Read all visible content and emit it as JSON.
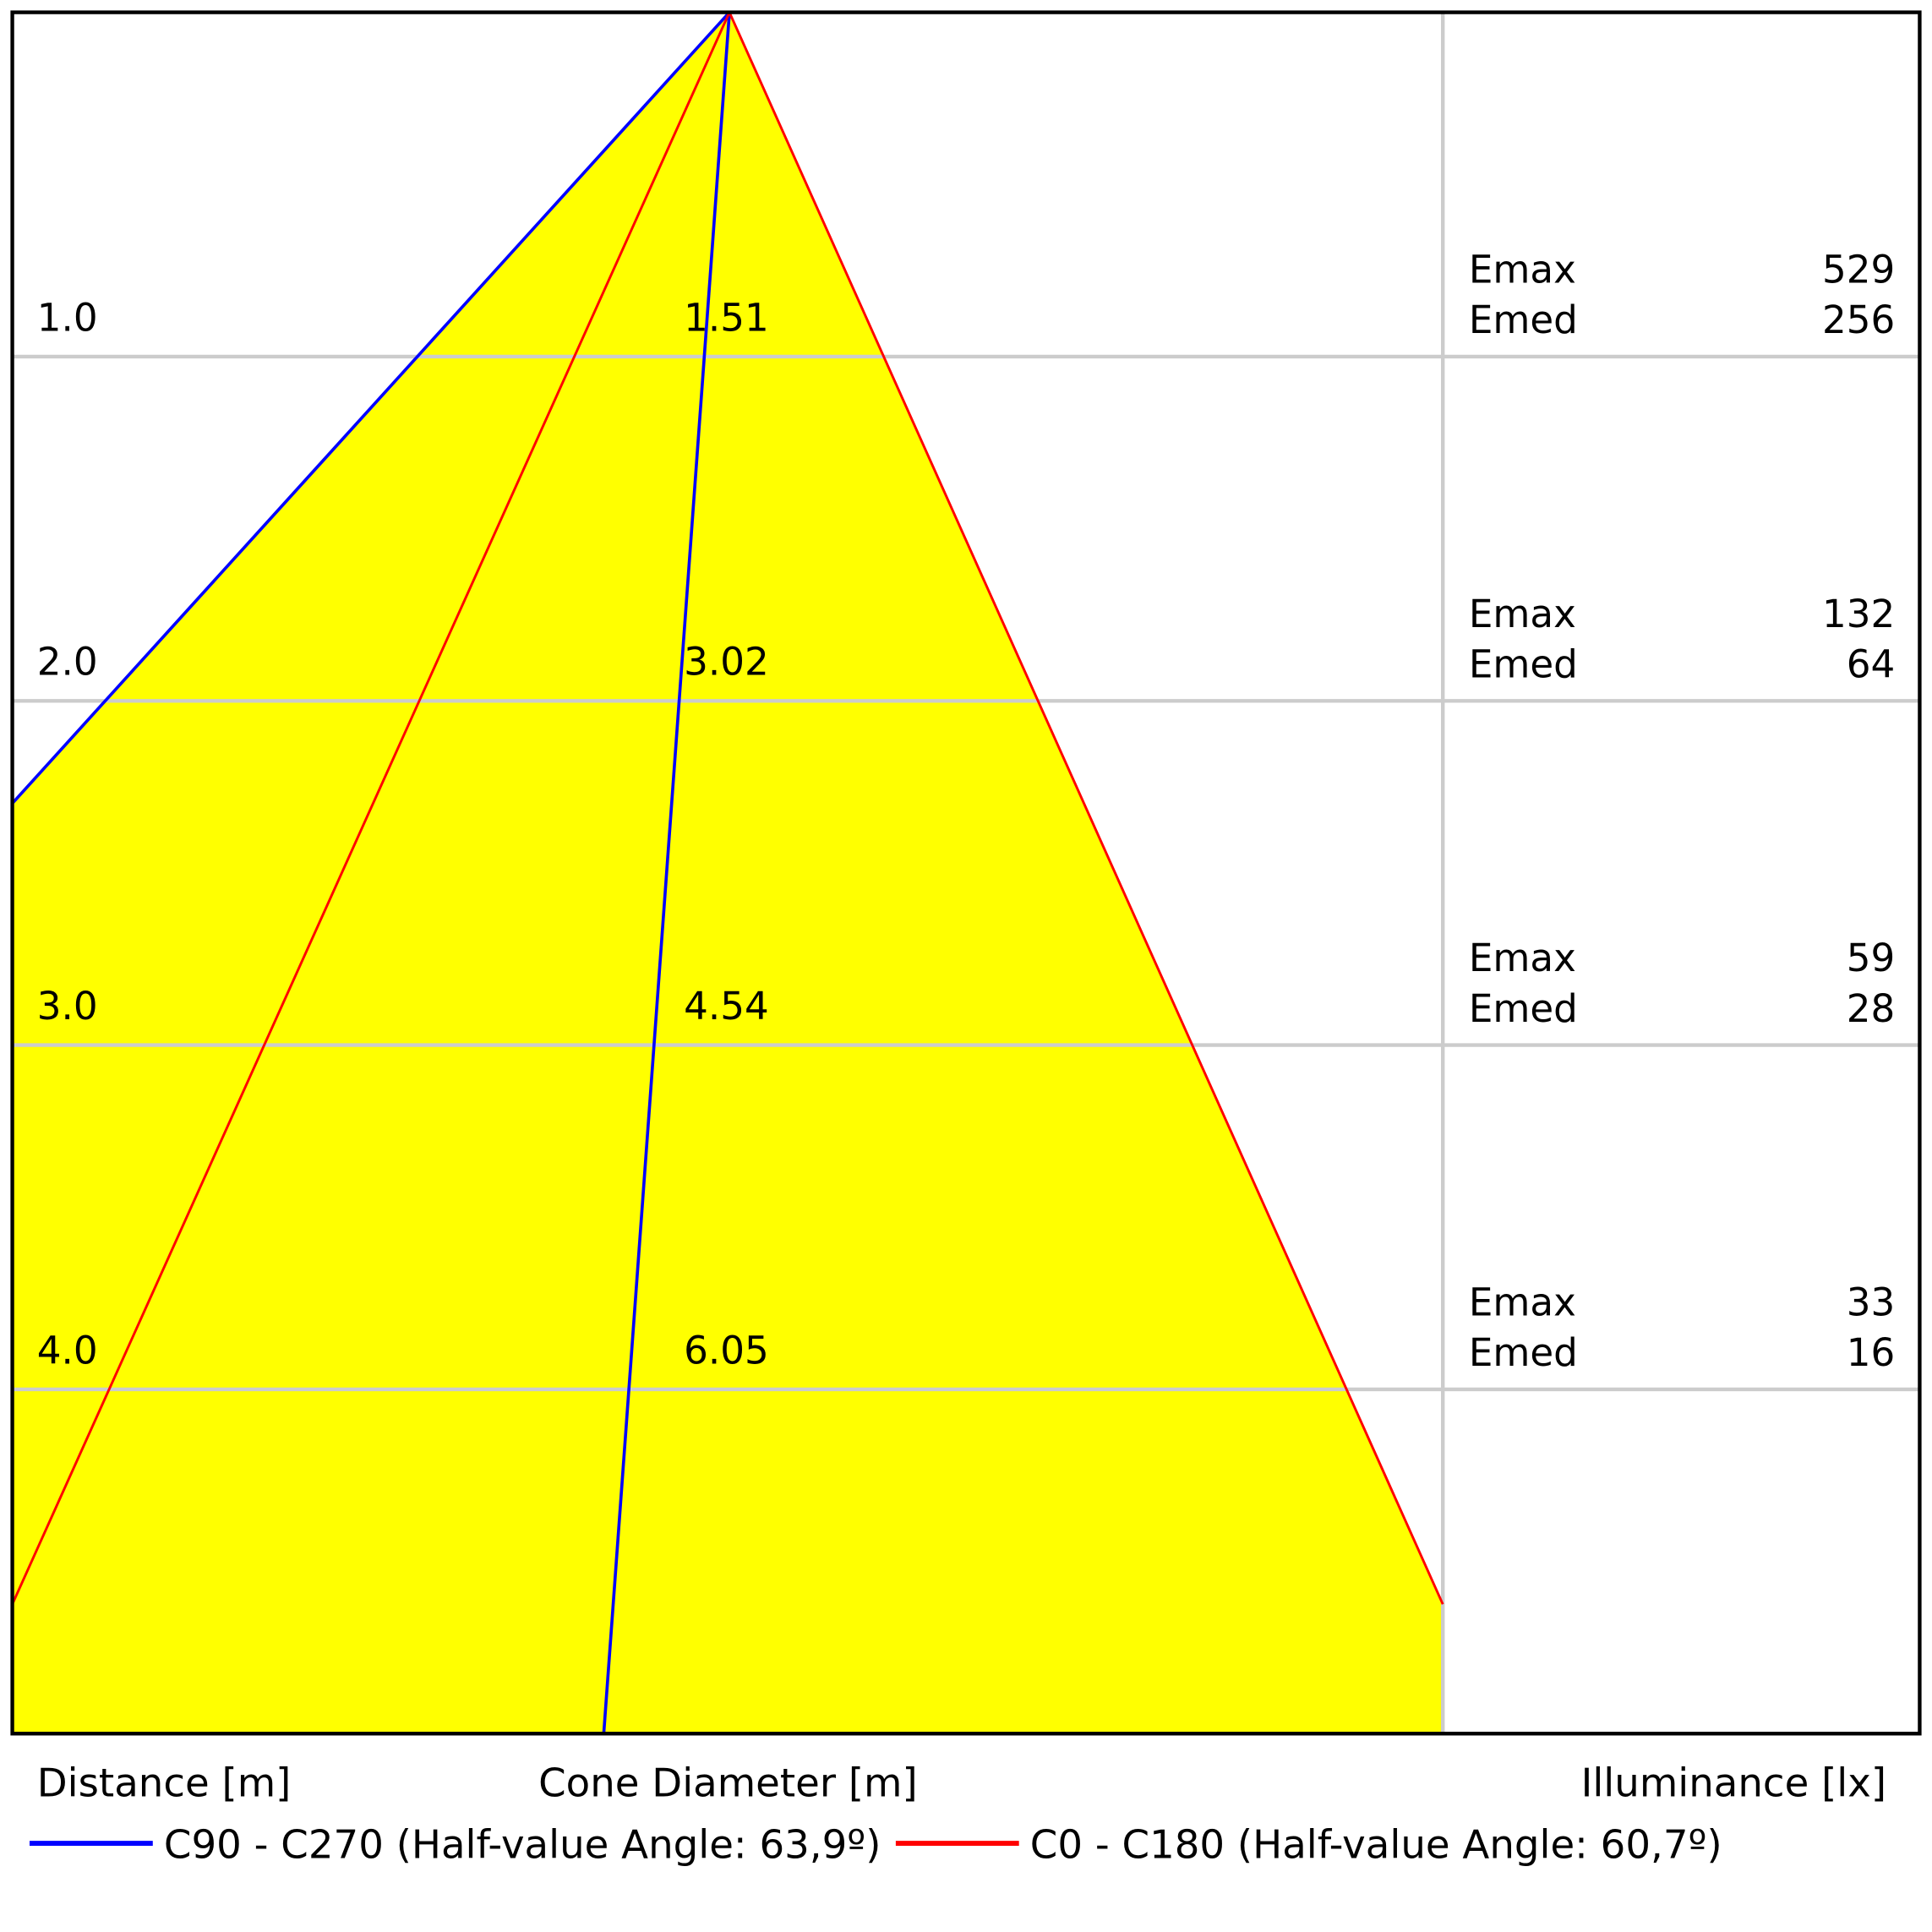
{
  "chart_data": {
    "type": "cone-diagram",
    "colors": {
      "fill": "#ffff00",
      "c90_line": "#0000ff",
      "c0_line": "#ff0000",
      "grid": "#cccccc",
      "frame": "#000000"
    },
    "xlabels": {
      "distance": "Distance [m]",
      "diameter": "Cone Diameter [m]",
      "illuminance": "Illuminance [lx]"
    },
    "emax_label": "Emax",
    "emed_label": "Emed",
    "max_distance": 5.0,
    "rows": [
      {
        "distance": "1.0",
        "diameter": "1.51",
        "emax": "529",
        "emed": "256"
      },
      {
        "distance": "2.0",
        "diameter": "3.02",
        "emax": "132",
        "emed": "64"
      },
      {
        "distance": "3.0",
        "diameter": "4.54",
        "emax": "59",
        "emed": "28"
      },
      {
        "distance": "4.0",
        "diameter": "6.05",
        "emax": "33",
        "emed": "16"
      }
    ],
    "series": [
      {
        "name": "C90 - C270 (Half-value Angle: 63,9º)",
        "half_angle_deg": 63.9,
        "color": "#0000ff"
      },
      {
        "name": "C0 - C180 (Half-value Angle: 60,7º)",
        "half_angle_deg": 60.7,
        "color": "#ff0000"
      }
    ]
  }
}
